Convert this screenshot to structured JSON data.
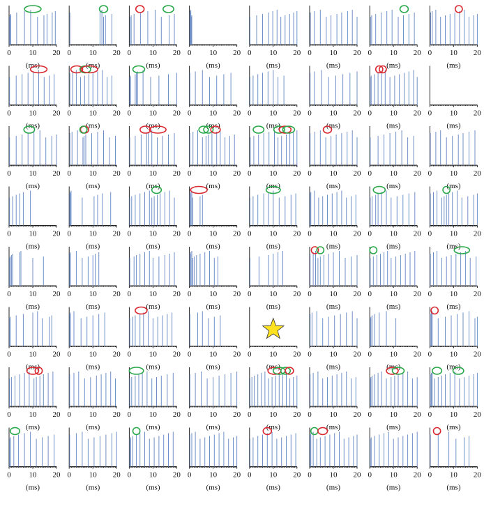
{
  "chart_data": {
    "type": "spike-raster-grid",
    "rows": 8,
    "cols": 8,
    "x_unit": "(ms)",
    "x_ticks": [
      0,
      10,
      20
    ],
    "xlim": [
      0,
      20
    ],
    "colors": {
      "spike": "#6f8fc7",
      "axis": "#222222",
      "green_oval": "#2aa84a",
      "red_oval": "#d9282f",
      "star": "#ffe21f"
    },
    "panels": [
      {
        "spikes": [
          0.2,
          0.4,
          0.7,
          3.2,
          6.5,
          9.1,
          12.0,
          14.7,
          16.0,
          18.2,
          19.5
        ],
        "marks": [
          {
            "x": 10,
            "w": 7,
            "c": "green"
          }
        ]
      },
      {
        "spikes": [
          0.3,
          13.0,
          13.8,
          14.5,
          15.3,
          18.0
        ],
        "marks": [
          {
            "x": 14.5,
            "w": 3.5,
            "c": "green"
          }
        ]
      },
      {
        "spikes": [
          0.3,
          0.8,
          2.0,
          4.7,
          7.8,
          10.9,
          13.5,
          16.8,
          19.0
        ],
        "marks": [
          {
            "x": 4.5,
            "w": 3.5,
            "c": "red"
          },
          {
            "x": 16.5,
            "w": 4.5,
            "c": "green"
          }
        ]
      },
      {
        "spikes": [
          0.2,
          0.4,
          0.6,
          0.8,
          1.0
        ],
        "marks": []
      },
      {
        "spikes": [
          0.2,
          3.0,
          5.5,
          8.0,
          9.8,
          11.6,
          13.2,
          15.0,
          16.9,
          18.6,
          20.0
        ],
        "marks": []
      },
      {
        "spikes": [
          0.3,
          2.0,
          4.5,
          7.0,
          9.0,
          11.5,
          13.5,
          16.0,
          18.0,
          20.0
        ],
        "marks": []
      },
      {
        "spikes": [
          0.3,
          0.8,
          2.5,
          4.8,
          7.2,
          9.4,
          12.0,
          14.2,
          16.5,
          18.8
        ],
        "marks": [
          {
            "x": 14.5,
            "w": 3.5,
            "c": "green"
          }
        ]
      },
      {
        "spikes": [
          0.3,
          1.0,
          2.5,
          4.5,
          6.5,
          8.5,
          10.5,
          12.5,
          14.5,
          16.5,
          18.5,
          20.0
        ],
        "marks": [
          {
            "x": 12.2,
            "w": 3,
            "c": "red"
          }
        ]
      },
      {
        "spikes": [
          0.2,
          3.0,
          5.5,
          8.0,
          10.2,
          12.5,
          14.8,
          17.0,
          19.0
        ],
        "marks": [
          {
            "x": 12.5,
            "w": 7,
            "c": "red"
          }
        ]
      },
      {
        "spikes": [
          0.3,
          1.5,
          3.0,
          4.8,
          6.5,
          8.3,
          10.0,
          12.0,
          14.0,
          16.0,
          18.0
        ],
        "marks": [
          {
            "x": 3.2,
            "w": 5,
            "c": "red"
          },
          {
            "x": 6.8,
            "w": 4.5,
            "c": "green"
          },
          {
            "x": 8.5,
            "w": 7,
            "c": "red"
          }
        ]
      },
      {
        "spikes": [
          0.2,
          0.5,
          2.5,
          3.0,
          3.5,
          5.8,
          9.0,
          12.5,
          16.5,
          20.0
        ],
        "marks": [
          {
            "x": 4,
            "w": 5,
            "c": "green"
          }
        ]
      },
      {
        "spikes": [
          0.2,
          2.5,
          5.5,
          8.5,
          11.5,
          14.5,
          17.5
        ],
        "marks": []
      },
      {
        "spikes": [
          0.2,
          1.5,
          3.5,
          5.5,
          7.8,
          10.0,
          12.0,
          14.5
        ],
        "marks": []
      },
      {
        "spikes": [
          0.2,
          2.0,
          5.0,
          8.0,
          11.0,
          14.0,
          17.0,
          20.0
        ],
        "marks": []
      },
      {
        "spikes": [
          0.2,
          0.6,
          2.0,
          3.5,
          5.0,
          6.5,
          8.5,
          10.5,
          12.5,
          14.5,
          16.5,
          18.5,
          20.0
        ],
        "marks": [
          {
            "x": 4,
            "w": 3,
            "c": "red"
          },
          {
            "x": 5.5,
            "w": 3,
            "c": "red"
          }
        ]
      },
      {
        "spikes": [],
        "marks": []
      },
      {
        "spikes": [
          0.2,
          3.0,
          5.5,
          8.0,
          10.5,
          13.0,
          15.5,
          18.0,
          20.0
        ],
        "marks": [
          {
            "x": 8.5,
            "w": 4.5,
            "c": "green"
          }
        ]
      },
      {
        "spikes": [
          0.3,
          1.2,
          3.5,
          5.8,
          6.3,
          7.0,
          9.5,
          12.0,
          14.5,
          17.0,
          19.5
        ],
        "marks": [
          {
            "x": 6.5,
            "w": 3.5,
            "c": "red"
          },
          {
            "x": 6.0,
            "w": 3,
            "c": "green"
          }
        ]
      },
      {
        "spikes": [
          0.2,
          2.5,
          5.0,
          7.3,
          8.0,
          9.5,
          11.8,
          14.0,
          16.5,
          19.0
        ],
        "marks": [
          {
            "x": 6.8,
            "w": 4.5,
            "c": "red"
          },
          {
            "x": 12,
            "w": 7,
            "c": "red"
          }
        ]
      },
      {
        "spikes": [
          0.2,
          1.5,
          3.5,
          5.5,
          7.0,
          8.0,
          9.5,
          11.5,
          13.0,
          15.0,
          17.0,
          19.0
        ],
        "marks": [
          {
            "x": 6,
            "w": 4,
            "c": "green"
          },
          {
            "x": 8,
            "w": 4,
            "c": "green"
          },
          {
            "x": 11,
            "w": 4,
            "c": "red"
          }
        ]
      },
      {
        "spikes": [
          0.3,
          1.8,
          3.8,
          6.0,
          8.2,
          10.5,
          12.0,
          13.5,
          15.5,
          17.0,
          18.5,
          20.0
        ],
        "marks": [
          {
            "x": 3.8,
            "w": 4.5,
            "c": "green"
          },
          {
            "x": 12.5,
            "w": 4.5,
            "c": "green"
          },
          {
            "x": 15,
            "w": 5,
            "c": "red"
          },
          {
            "x": 16.5,
            "w": 5,
            "c": "green"
          }
        ]
      },
      {
        "spikes": [
          0.2,
          2.2,
          4.5,
          6.8,
          9.0,
          11.2,
          13.5,
          15.8,
          18.0,
          20.0
        ],
        "marks": [
          {
            "x": 7.5,
            "w": 3.5,
            "c": "red"
          }
        ]
      },
      {
        "spikes": [
          0.2,
          3.5,
          6.0,
          8.5,
          11.0,
          13.5,
          16.0,
          18.5
        ],
        "marks": []
      },
      {
        "spikes": [
          0.2,
          2.5,
          4.5,
          7.0,
          9.5,
          12.0,
          14.0,
          16.5,
          19.0
        ],
        "marks": []
      },
      {
        "spikes": [
          0.2,
          1.5,
          3.0,
          4.5,
          6.0,
          9.0
        ],
        "marks": []
      },
      {
        "spikes": [
          0.2,
          0.5,
          0.8,
          5.5,
          10.5,
          12.0,
          14.0,
          17.5
        ],
        "marks": []
      },
      {
        "spikes": [
          0.2,
          1.0,
          2.5,
          4.5,
          6.5,
          8.5,
          9.5,
          10.5,
          11.8,
          13.0,
          15.0,
          17.0,
          19.0
        ],
        "marks": [
          {
            "x": 11.5,
            "w": 4,
            "c": "green"
          }
        ]
      },
      {
        "spikes": [
          0.2,
          0.6,
          1.0,
          1.4,
          4.5,
          5.5
        ],
        "marks": [
          {
            "x": 4,
            "w": 7,
            "c": "red"
          }
        ]
      },
      {
        "spikes": [
          0.2,
          1.5,
          3.5,
          6.0,
          8.0,
          10.0,
          12.5,
          15.0,
          17.5,
          19.5
        ],
        "marks": [
          {
            "x": 10,
            "w": 6,
            "c": "green"
          }
        ]
      },
      {
        "spikes": [
          0.2,
          0.5,
          2.0,
          3.8,
          5.5,
          7.5,
          9.5,
          11.5,
          13.5,
          15.5,
          17.5,
          19.5
        ],
        "marks": []
      },
      {
        "spikes": [
          0.2,
          1.0,
          2.5,
          3.5,
          5.0,
          7.0,
          9.0,
          11.5,
          14.0,
          16.5,
          19.0
        ],
        "marks": [
          {
            "x": 4,
            "w": 5,
            "c": "green"
          }
        ]
      },
      {
        "spikes": [
          0.2,
          1.5,
          3.0,
          5.0,
          6.0,
          7.0,
          8.0,
          9.5,
          11.5,
          13.5,
          16.0,
          18.5,
          20.0
        ],
        "marks": [
          {
            "x": 7,
            "w": 3,
            "c": "green"
          }
        ]
      },
      {
        "spikes": [
          0.2,
          0.5,
          1.0,
          1.5,
          4.5,
          5.0,
          10.0,
          14.5
        ],
        "marks": []
      },
      {
        "spikes": [
          0.2,
          0.5,
          3.0,
          5.5,
          8.0,
          10.0,
          11.0,
          12.5
        ],
        "marks": []
      },
      {
        "spikes": [
          0.2,
          2.0,
          3.0,
          4.5,
          6.5,
          8.5,
          10.0,
          12.5,
          15.0,
          17.0,
          19.0
        ],
        "marks": []
      },
      {
        "spikes": [
          0.2,
          0.6,
          1.0,
          1.4,
          2.0,
          3.0,
          4.5,
          6.5,
          8.5,
          10.5,
          12.0
        ],
        "marks": []
      },
      {
        "spikes": [
          0.2,
          4.0,
          8.0,
          10.0,
          12.0,
          14.0
        ],
        "marks": []
      },
      {
        "spikes": [
          0.2,
          1.5,
          2.5,
          3.5,
          4.5,
          6.0,
          8.0,
          10.0,
          12.5,
          15.0,
          17.5,
          20.0
        ],
        "marks": [
          {
            "x": 2.2,
            "w": 3,
            "c": "red"
          },
          {
            "x": 4.5,
            "w": 3,
            "c": "green"
          }
        ]
      },
      {
        "spikes": [
          0.2,
          1.5,
          3.0,
          4.5,
          6.0,
          7.5,
          9.0,
          11.0,
          13.0,
          15.0,
          17.0,
          19.0
        ],
        "marks": [
          {
            "x": 1.5,
            "w": 3,
            "c": "green"
          }
        ]
      },
      {
        "spikes": [
          0.2,
          1.5,
          3.0,
          5.0,
          7.0,
          9.0,
          11.0,
          13.0,
          15.0,
          17.0,
          19.5
        ],
        "marks": [
          {
            "x": 13.5,
            "w": 6.5,
            "c": "green"
          }
        ]
      },
      {
        "spikes": [
          0.2,
          0.5,
          3.0,
          6.0,
          10.0,
          12.0,
          14.0,
          17.0,
          18.0
        ],
        "marks": []
      },
      {
        "spikes": [
          0.2,
          0.5,
          2.0,
          5.0,
          7.5,
          10.0,
          12.5,
          15.0
        ],
        "marks": []
      },
      {
        "spikes": [
          0.2,
          1.5,
          2.5,
          4.5,
          6.0,
          8.0,
          10.0,
          12.0,
          14.0,
          16.0,
          18.0
        ],
        "marks": [
          {
            "x": 5,
            "w": 5,
            "c": "red"
          }
        ]
      },
      {
        "spikes": [
          0.2,
          3.5,
          5.5,
          8.0,
          10.5,
          13.0
        ],
        "marks": []
      },
      {
        "spikes": [],
        "marks": [],
        "star": true
      },
      {
        "spikes": [
          0.2,
          1.0,
          3.0,
          5.5,
          8.0,
          10.5,
          13.0,
          15.5,
          18.0,
          20.0
        ],
        "marks": []
      },
      {
        "spikes": [
          0.2,
          0.5,
          1.0,
          2.0,
          4.0,
          7.0,
          11.0
        ],
        "marks": []
      },
      {
        "spikes": [
          0.2,
          0.6,
          1.0,
          3.5,
          6.5,
          9.0,
          11.5,
          14.0,
          16.5,
          19.0,
          20.0
        ],
        "marks": [
          {
            "x": 2,
            "w": 3,
            "c": "red"
          }
        ]
      },
      {
        "spikes": [
          0.2,
          1.0,
          2.5,
          4.5,
          6.5,
          8.5,
          10.5,
          11.5,
          13.0,
          14.5,
          16.5,
          18.5
        ],
        "marks": [
          {
            "x": 10,
            "w": 5,
            "c": "red"
          },
          {
            "x": 12.5,
            "w": 3,
            "c": "red"
          }
        ]
      },
      {
        "spikes": [
          0.2,
          2.0,
          4.0,
          6.5,
          9.0,
          11.5,
          13.5,
          15.5,
          17.5,
          19.5
        ],
        "marks": []
      },
      {
        "spikes": [
          0.2,
          1.0,
          2.5,
          4.0,
          5.5,
          7.5,
          9.5,
          11.5,
          13.5,
          16.0,
          18.5
        ],
        "marks": [
          {
            "x": 3,
            "w": 6,
            "c": "green"
          }
        ]
      },
      {
        "spikes": [
          0.2,
          2.5,
          5.0,
          7.5,
          10.0,
          12.5,
          15.0,
          17.5,
          20.0
        ],
        "marks": []
      },
      {
        "spikes": [
          0.2,
          1.0,
          2.0,
          3.5,
          5.0,
          6.5,
          8.0,
          9.5,
          11.0,
          12.5,
          14.0,
          15.5,
          17.0,
          18.5,
          20.0
        ],
        "marks": [
          {
            "x": 10.5,
            "w": 5.5,
            "c": "red"
          },
          {
            "x": 12.5,
            "w": 5,
            "c": "green"
          },
          {
            "x": 15.2,
            "w": 4,
            "c": "green"
          },
          {
            "x": 16.8,
            "w": 3.5,
            "c": "red"
          }
        ]
      },
      {
        "spikes": [
          0.2,
          1.5,
          3.5,
          5.5,
          7.5,
          9.5,
          11.5,
          13.5,
          15.5,
          17.5,
          19.5
        ],
        "marks": []
      },
      {
        "spikes": [
          0.2,
          0.5,
          1.0,
          2.0,
          3.5,
          5.0,
          7.0,
          9.0,
          10.5,
          12.0,
          14.0,
          16.0,
          18.0,
          20.0
        ],
        "marks": [
          {
            "x": 9.5,
            "w": 5,
            "c": "red"
          },
          {
            "x": 12,
            "w": 5,
            "c": "green"
          }
        ]
      },
      {
        "spikes": [
          0.2,
          0.6,
          1.0,
          2.0,
          3.5,
          5.0,
          6.5,
          8.5,
          10.5,
          12.5,
          14.5,
          16.5,
          18.5,
          20.0
        ],
        "marks": [
          {
            "x": 3,
            "w": 4,
            "c": "green"
          },
          {
            "x": 12,
            "w": 4.5,
            "c": "green"
          }
        ]
      },
      {
        "spikes": [
          0.2,
          0.6,
          2.0,
          4.0,
          6.5,
          9.0,
          11.5,
          14.0,
          16.5,
          19.0
        ],
        "marks": [
          {
            "x": 2.5,
            "w": 4,
            "c": "green"
          }
        ]
      },
      {
        "spikes": [
          0.2,
          3.0,
          5.5,
          8.0,
          10.5,
          13.0,
          15.5,
          18.0,
          20.0
        ],
        "marks": []
      },
      {
        "spikes": [
          0.2,
          0.6,
          1.5,
          3.0,
          4.5,
          6.5,
          8.5,
          10.5,
          12.5,
          14.5,
          16.5,
          18.5
        ],
        "marks": [
          {
            "x": 3,
            "w": 3,
            "c": "green"
          }
        ]
      },
      {
        "spikes": [
          0.2,
          1.0,
          2.5,
          4.5,
          6.5,
          8.5,
          10.5,
          12.5,
          14.5,
          16.5,
          18.5,
          20.0
        ],
        "marks": []
      },
      {
        "spikes": [
          0.2,
          1.5,
          3.5,
          5.5,
          7.5,
          9.5,
          11.5,
          13.5,
          15.5,
          17.5,
          19.5
        ],
        "marks": [
          {
            "x": 7.5,
            "w": 3.5,
            "c": "red"
          }
        ]
      },
      {
        "spikes": [
          0.2,
          0.5,
          1.5,
          3.0,
          4.5,
          6.5,
          8.5,
          10.5,
          12.5,
          14.5,
          16.5,
          18.5,
          20.0
        ],
        "marks": [
          {
            "x": 2,
            "w": 3,
            "c": "green"
          },
          {
            "x": 5.5,
            "w": 4,
            "c": "red"
          }
        ]
      },
      {
        "spikes": [
          0.2,
          0.6,
          2.0,
          4.0,
          6.0,
          8.0,
          10.0,
          12.0,
          14.0,
          16.0,
          18.0,
          20.0
        ],
        "marks": []
      },
      {
        "spikes": [
          0.2,
          3.5,
          8.0,
          11.0,
          14.5,
          16.5
        ],
        "marks": [
          {
            "x": 3,
            "w": 3,
            "c": "red"
          }
        ]
      }
    ]
  }
}
